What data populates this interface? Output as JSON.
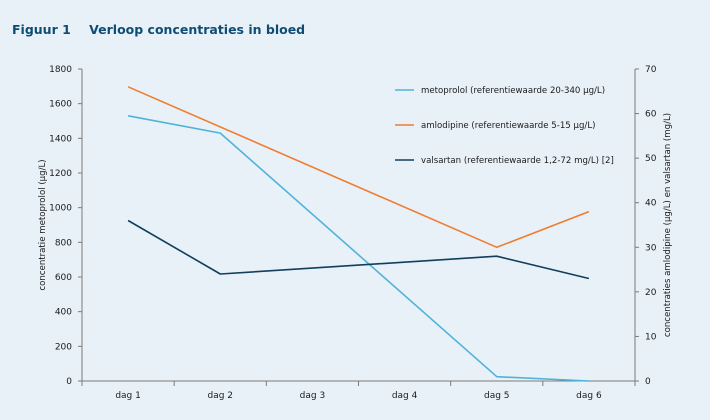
{
  "figure": {
    "number": "Figuur 1",
    "title": "Verloop concentraties in bloed"
  },
  "chart_data": {
    "type": "line",
    "categories": [
      "dag 1",
      "dag 2",
      "dag 3",
      "dag 4",
      "dag 5",
      "dag 6"
    ],
    "y_left": {
      "label": "concentratie metoprolol (µg/L)",
      "min": 0,
      "max": 1800,
      "ticks": [
        0,
        200,
        400,
        600,
        800,
        1000,
        1200,
        1400,
        1600,
        1800
      ]
    },
    "y_right": {
      "label": "concentraties amlodipine (µg/L) en valsartan (mg/L)",
      "min": 0,
      "max": 70,
      "ticks": [
        0,
        10,
        20,
        30,
        40,
        50,
        60,
        70
      ]
    },
    "grid": false,
    "legend_position": "top-right",
    "series": [
      {
        "name": "metoprolol (referentiewaarde 20-340 µg/L)",
        "axis": "left",
        "color": "#4fb3d9",
        "values": [
          1530,
          1430,
          null,
          null,
          25,
          0
        ]
      },
      {
        "name": "amlodipine (referentiewaarde 5-15 µg/L)",
        "axis": "right",
        "color": "#ee7d31",
        "values": [
          66,
          null,
          null,
          null,
          30,
          38
        ]
      },
      {
        "name": "valsartan (referentiewaarde 1,2-72 mg/L) [2]",
        "axis": "right",
        "color": "#103f5e",
        "values": [
          36,
          24,
          null,
          null,
          28,
          23
        ]
      }
    ]
  }
}
